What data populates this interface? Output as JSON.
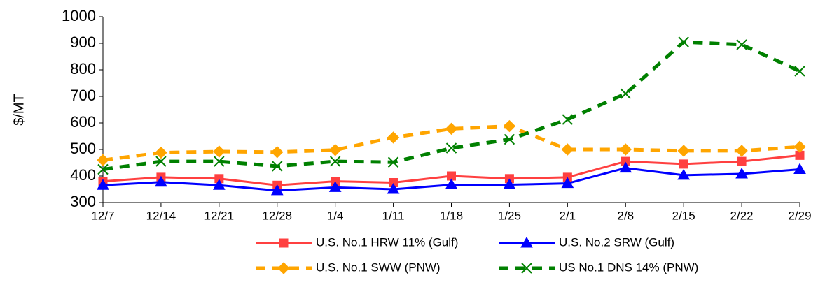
{
  "chart_data": {
    "type": "line",
    "y_label": "$/MT",
    "categories": [
      "12/7",
      "12/14",
      "12/21",
      "12/28",
      "1/4",
      "1/11",
      "1/18",
      "1/25",
      "2/1",
      "2/8",
      "2/15",
      "2/22",
      "2/29"
    ],
    "series": [
      {
        "name": "U.S. No.1 HRW 11% (Gulf)",
        "color": "#ff4040",
        "marker": "square",
        "dashed": false,
        "values": [
          380,
          395,
          390,
          365,
          380,
          375,
          400,
          390,
          395,
          455,
          445,
          455,
          478
        ]
      },
      {
        "name": "U.S. No.2 SRW (Gulf)",
        "color": "#0000ff",
        "marker": "triangle",
        "dashed": false,
        "values": [
          365,
          377,
          365,
          345,
          357,
          350,
          367,
          367,
          372,
          430,
          403,
          408,
          425
        ]
      },
      {
        "name": "U.S. No.1 SWW (PNW)",
        "color": "#ffa500",
        "marker": "diamond",
        "dashed": true,
        "values": [
          460,
          488,
          492,
          490,
          498,
          545,
          578,
          588,
          500,
          500,
          495,
          495,
          510
        ]
      },
      {
        "name": "US No.1 DNS 14% (PNW)",
        "color": "#008000",
        "marker": "x",
        "dashed": true,
        "values": [
          425,
          455,
          455,
          437,
          455,
          452,
          505,
          538,
          613,
          710,
          905,
          895,
          795
        ]
      }
    ],
    "ylim": [
      300,
      1000
    ],
    "yticks": [
      300,
      400,
      500,
      600,
      700,
      800,
      900,
      1000
    ],
    "grid": false
  }
}
